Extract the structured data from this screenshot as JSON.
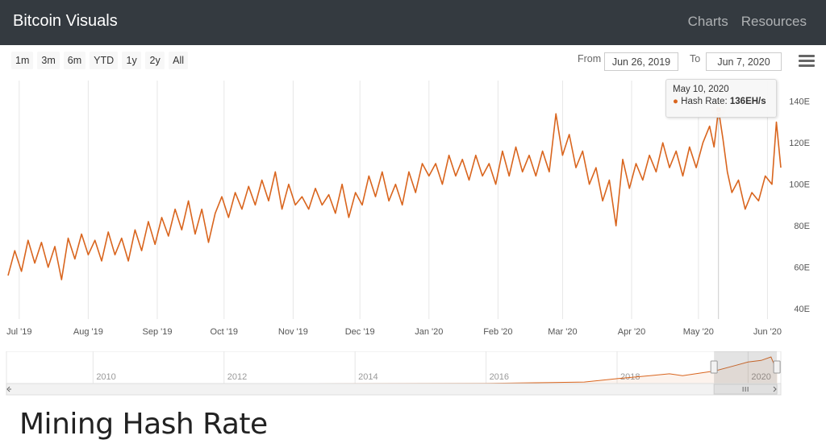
{
  "navbar": {
    "brand": "Bitcoin Visuals",
    "links": [
      "Charts",
      "Resources"
    ]
  },
  "range_selector": {
    "buttons": [
      "1m",
      "3m",
      "6m",
      "YTD",
      "1y",
      "2y",
      "All"
    ],
    "from_label": "From",
    "from_value": "Jun 26, 2019",
    "to_label": "To",
    "to_value": "Jun 7, 2020"
  },
  "tooltip": {
    "date": "May 10, 2020",
    "series_label": "Hash Rate: ",
    "value": "136EH/s"
  },
  "page_heading": "Mining Hash Rate",
  "colors": {
    "series": "#d9651e",
    "navbar_bg": "#343a40",
    "grid": "#e6e6e6"
  },
  "chart_data": {
    "type": "line",
    "title": "",
    "xlabel": "",
    "ylabel": "",
    "y_unit_suffix": "E",
    "ylim": [
      35,
      150
    ],
    "yticks": [
      40,
      60,
      80,
      100,
      120,
      140
    ],
    "x_range": [
      "2019-06-26",
      "2020-06-07"
    ],
    "xticks": [
      {
        "date": "2019-07-01",
        "label": "Jul '19"
      },
      {
        "date": "2019-08-01",
        "label": "Aug '19"
      },
      {
        "date": "2019-09-01",
        "label": "Sep '19"
      },
      {
        "date": "2019-10-01",
        "label": "Oct '19"
      },
      {
        "date": "2019-11-01",
        "label": "Nov '19"
      },
      {
        "date": "2019-12-01",
        "label": "Dec '19"
      },
      {
        "date": "2020-01-01",
        "label": "Jan '20"
      },
      {
        "date": "2020-02-01",
        "label": "Feb '20"
      },
      {
        "date": "2020-03-01",
        "label": "Mar '20"
      },
      {
        "date": "2020-04-01",
        "label": "Apr '20"
      },
      {
        "date": "2020-05-01",
        "label": "May '20"
      },
      {
        "date": "2020-06-01",
        "label": "Jun '20"
      }
    ],
    "highlight": {
      "date": "2020-05-10",
      "value": 136
    },
    "series": [
      {
        "values": [
          [
            "2019-06-26",
            56
          ],
          [
            "2019-06-29",
            68
          ],
          [
            "2019-07-02",
            58
          ],
          [
            "2019-07-05",
            73
          ],
          [
            "2019-07-08",
            62
          ],
          [
            "2019-07-11",
            72
          ],
          [
            "2019-07-14",
            60
          ],
          [
            "2019-07-17",
            70
          ],
          [
            "2019-07-20",
            54
          ],
          [
            "2019-07-23",
            74
          ],
          [
            "2019-07-26",
            64
          ],
          [
            "2019-07-29",
            76
          ],
          [
            "2019-08-01",
            66
          ],
          [
            "2019-08-04",
            73
          ],
          [
            "2019-08-07",
            63
          ],
          [
            "2019-08-10",
            77
          ],
          [
            "2019-08-13",
            66
          ],
          [
            "2019-08-16",
            74
          ],
          [
            "2019-08-19",
            63
          ],
          [
            "2019-08-22",
            78
          ],
          [
            "2019-08-25",
            68
          ],
          [
            "2019-08-28",
            82
          ],
          [
            "2019-08-31",
            71
          ],
          [
            "2019-09-03",
            84
          ],
          [
            "2019-09-06",
            75
          ],
          [
            "2019-09-09",
            88
          ],
          [
            "2019-09-12",
            78
          ],
          [
            "2019-09-15",
            92
          ],
          [
            "2019-09-18",
            76
          ],
          [
            "2019-09-21",
            88
          ],
          [
            "2019-09-24",
            72
          ],
          [
            "2019-09-27",
            86
          ],
          [
            "2019-09-30",
            94
          ],
          [
            "2019-10-03",
            84
          ],
          [
            "2019-10-06",
            96
          ],
          [
            "2019-10-09",
            88
          ],
          [
            "2019-10-12",
            99
          ],
          [
            "2019-10-15",
            90
          ],
          [
            "2019-10-18",
            102
          ],
          [
            "2019-10-21",
            92
          ],
          [
            "2019-10-24",
            106
          ],
          [
            "2019-10-27",
            88
          ],
          [
            "2019-10-30",
            100
          ],
          [
            "2019-11-02",
            90
          ],
          [
            "2019-11-05",
            94
          ],
          [
            "2019-11-08",
            88
          ],
          [
            "2019-11-11",
            98
          ],
          [
            "2019-11-14",
            90
          ],
          [
            "2019-11-17",
            95
          ],
          [
            "2019-11-20",
            86
          ],
          [
            "2019-11-23",
            100
          ],
          [
            "2019-11-26",
            84
          ],
          [
            "2019-11-29",
            96
          ],
          [
            "2019-12-02",
            90
          ],
          [
            "2019-12-05",
            104
          ],
          [
            "2019-12-08",
            94
          ],
          [
            "2019-12-11",
            106
          ],
          [
            "2019-12-14",
            92
          ],
          [
            "2019-12-17",
            100
          ],
          [
            "2019-12-20",
            90
          ],
          [
            "2019-12-23",
            106
          ],
          [
            "2019-12-26",
            96
          ],
          [
            "2019-12-29",
            110
          ],
          [
            "2020-01-01",
            104
          ],
          [
            "2020-01-04",
            110
          ],
          [
            "2020-01-07",
            100
          ],
          [
            "2020-01-10",
            114
          ],
          [
            "2020-01-13",
            104
          ],
          [
            "2020-01-16",
            112
          ],
          [
            "2020-01-19",
            102
          ],
          [
            "2020-01-22",
            114
          ],
          [
            "2020-01-25",
            104
          ],
          [
            "2020-01-28",
            110
          ],
          [
            "2020-01-31",
            100
          ],
          [
            "2020-02-03",
            116
          ],
          [
            "2020-02-06",
            104
          ],
          [
            "2020-02-09",
            118
          ],
          [
            "2020-02-12",
            106
          ],
          [
            "2020-02-15",
            114
          ],
          [
            "2020-02-18",
            104
          ],
          [
            "2020-02-21",
            116
          ],
          [
            "2020-02-24",
            106
          ],
          [
            "2020-02-27",
            134
          ],
          [
            "2020-03-01",
            114
          ],
          [
            "2020-03-04",
            124
          ],
          [
            "2020-03-07",
            108
          ],
          [
            "2020-03-10",
            116
          ],
          [
            "2020-03-13",
            100
          ],
          [
            "2020-03-16",
            108
          ],
          [
            "2020-03-19",
            92
          ],
          [
            "2020-03-22",
            102
          ],
          [
            "2020-03-25",
            80
          ],
          [
            "2020-03-28",
            112
          ],
          [
            "2020-03-31",
            98
          ],
          [
            "2020-04-03",
            110
          ],
          [
            "2020-04-06",
            102
          ],
          [
            "2020-04-09",
            114
          ],
          [
            "2020-04-12",
            106
          ],
          [
            "2020-04-15",
            120
          ],
          [
            "2020-04-18",
            108
          ],
          [
            "2020-04-21",
            116
          ],
          [
            "2020-04-24",
            104
          ],
          [
            "2020-04-27",
            118
          ],
          [
            "2020-04-30",
            108
          ],
          [
            "2020-05-03",
            120
          ],
          [
            "2020-05-06",
            128
          ],
          [
            "2020-05-08",
            118
          ],
          [
            "2020-05-10",
            136
          ],
          [
            "2020-05-12",
            122
          ],
          [
            "2020-05-14",
            106
          ],
          [
            "2020-05-16",
            96
          ],
          [
            "2020-05-19",
            102
          ],
          [
            "2020-05-22",
            88
          ],
          [
            "2020-05-25",
            96
          ],
          [
            "2020-05-28",
            92
          ],
          [
            "2020-05-31",
            104
          ],
          [
            "2020-06-03",
            100
          ],
          [
            "2020-06-05",
            130
          ],
          [
            "2020-06-07",
            108
          ]
        ]
      }
    ],
    "navigator": {
      "x_range": [
        2008.9,
        2020.5
      ],
      "xticks": [
        2010,
        2012,
        2014,
        2016,
        2018,
        2020
      ],
      "values": [
        [
          2009.0,
          0
        ],
        [
          2013.0,
          0.1
        ],
        [
          2016.0,
          1
        ],
        [
          2017.0,
          5
        ],
        [
          2017.5,
          8
        ],
        [
          2018.0,
          25
        ],
        [
          2018.5,
          40
        ],
        [
          2018.8,
          50
        ],
        [
          2019.0,
          40
        ],
        [
          2019.3,
          55
        ],
        [
          2019.5,
          65
        ],
        [
          2019.8,
          92
        ],
        [
          2020.0,
          110
        ],
        [
          2020.2,
          118
        ],
        [
          2020.35,
          136
        ],
        [
          2020.4,
          96
        ],
        [
          2020.45,
          108
        ]
      ],
      "ylim": [
        0,
        140
      ]
    }
  }
}
